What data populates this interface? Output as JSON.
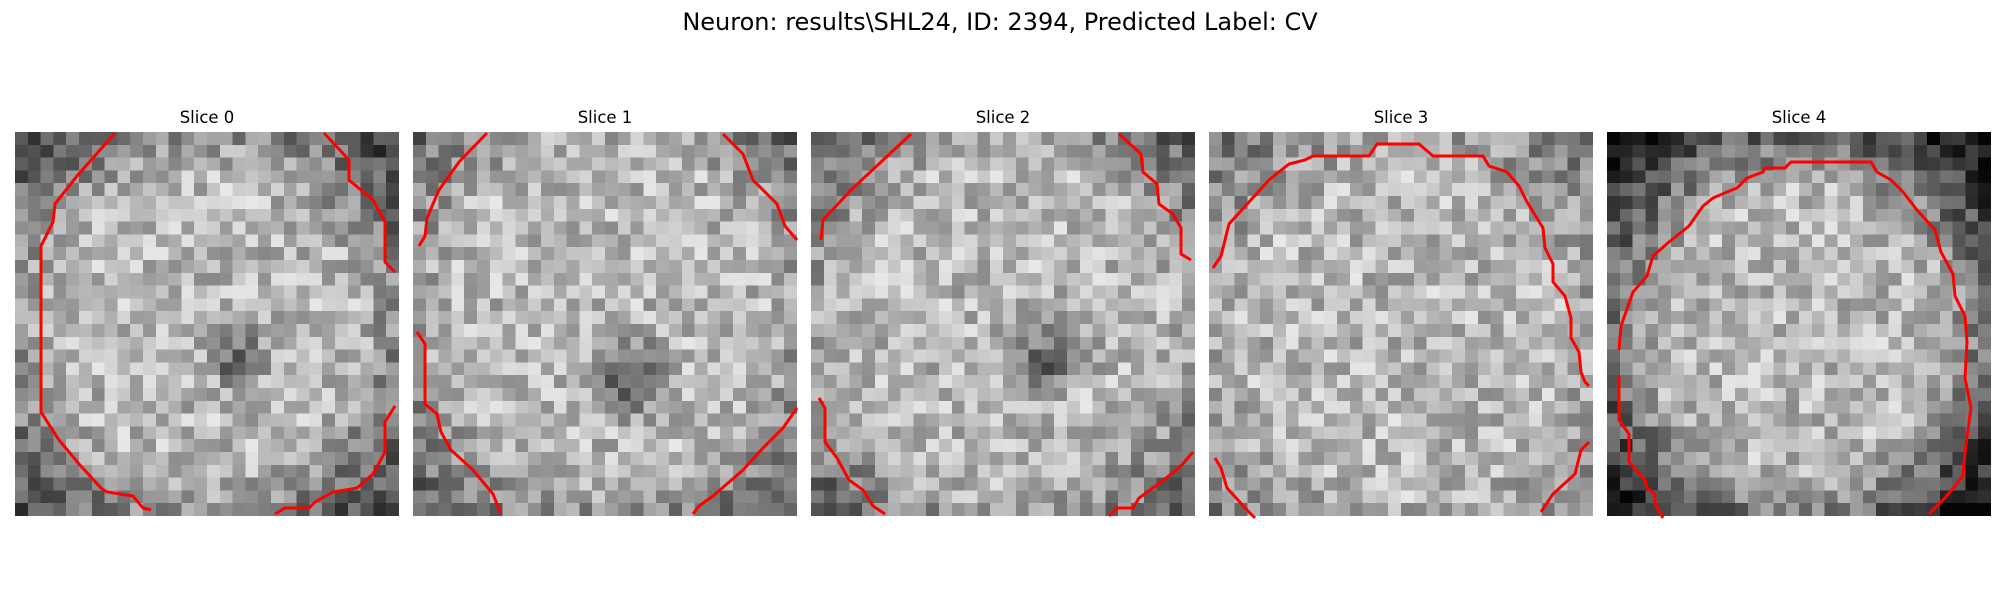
{
  "figure": {
    "title": "Neuron: results\\SHL24, ID: 2394, Predicted Label: CV"
  },
  "colors": {
    "background": "#ffffff",
    "contour": "#ff0000",
    "colormap": "gray"
  },
  "slices": [
    {
      "title": "Slice 0"
    },
    {
      "title": "Slice 1"
    },
    {
      "title": "Slice 2"
    },
    {
      "title": "Slice 3"
    },
    {
      "title": "Slice 4"
    }
  ]
}
